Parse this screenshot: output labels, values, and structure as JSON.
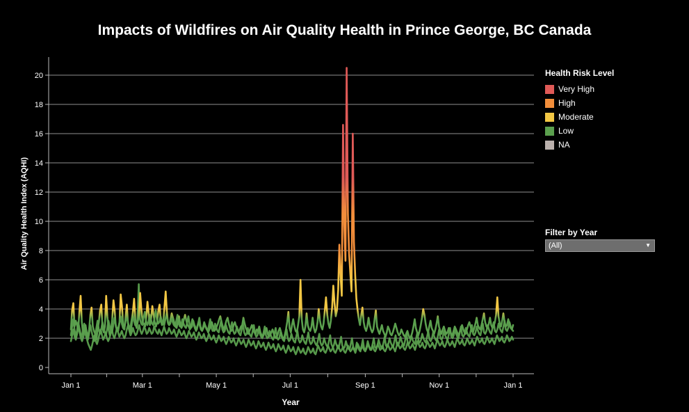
{
  "title": "Impacts of Wildfires on Air Quality Health in Prince George, BC Canada",
  "legend": {
    "title": "Health Risk Level",
    "items": [
      {
        "label": "Very High",
        "color": "#e05a57"
      },
      {
        "label": "High",
        "color": "#f28e3b"
      },
      {
        "label": "Moderate",
        "color": "#f2c744"
      },
      {
        "label": "Low",
        "color": "#5ba04e"
      },
      {
        "label": "NA",
        "color": "#bab0ac"
      }
    ]
  },
  "filter": {
    "title": "Filter by Year",
    "value": "(All)"
  },
  "chart_data": {
    "type": "line",
    "title": "Impacts of Wildfires on Air Quality Health in Prince George, BC Canada",
    "xlabel": "Year",
    "ylabel": "Air Quality Health Index (AQHI)",
    "x_tick_labels": [
      "Jan 1",
      "Mar 1",
      "May 1",
      "Jul 1",
      "Sep 1",
      "Nov 1",
      "Jan 1"
    ],
    "x_tick_days": [
      0,
      59,
      120,
      181,
      243,
      304,
      365
    ],
    "xlim_days": [
      0,
      365
    ],
    "y_ticks": [
      0,
      2,
      4,
      6,
      8,
      10,
      12,
      14,
      16,
      18,
      20
    ],
    "ylim": [
      0,
      21
    ],
    "grid": "horizontal",
    "legend_position": "right",
    "color_scale": {
      "Low": [
        0,
        3
      ],
      "Moderate": [
        4,
        6
      ],
      "High": [
        7,
        10
      ],
      "Very High": [
        11,
        21
      ]
    },
    "notable_peaks": [
      {
        "date": "Aug 8",
        "value": 8.4
      },
      {
        "date": "Aug 10",
        "value": 16.6
      },
      {
        "date": "Aug 13",
        "value": 20.5
      },
      {
        "date": "Aug 14",
        "value": 10.5
      },
      {
        "date": "Aug 18",
        "value": 16.0
      },
      {
        "date": "Jul 15",
        "value": 6.0
      },
      {
        "date": "Feb 28",
        "value": 5.7
      },
      {
        "date": "Dec 19",
        "value": 4.8
      }
    ],
    "series": [
      {
        "values": [
          2.6,
          3.9,
          4.4,
          2.8,
          3.2,
          2.9,
          2.6,
          3.8,
          4.9,
          3.1,
          2.3,
          2.5,
          2.9,
          2.4,
          2.1,
          2.6,
          3.6,
          4.1,
          2.8,
          2.5,
          2.3,
          1.9,
          2.6,
          3.1,
          3.9,
          4.3,
          2.7,
          2.4,
          2.8,
          4.9,
          3.5,
          2.6,
          2.2,
          2.5,
          3.3,
          4.6,
          3.9,
          2.8,
          2.5,
          2.7,
          3.1,
          5.0,
          4.2,
          2.9,
          2.6,
          3.4,
          4.3,
          3.0,
          2.6,
          2.4,
          2.9,
          3.8,
          4.7,
          3.3,
          2.7,
          3.1,
          3.6,
          5.1,
          4.0,
          3.1,
          3.0,
          2.8,
          3.4,
          4.5,
          3.7,
          2.9,
          3.3,
          4.2,
          3.6,
          3.1,
          2.8,
          3.1,
          3.9,
          4.3,
          3.2,
          2.9,
          3.0,
          4.1,
          5.2,
          3.8,
          3.0,
          2.9,
          3.3,
          3.7,
          3.4,
          3.1,
          2.8,
          2.7,
          3.1,
          3.5,
          2.9,
          2.7,
          2.9,
          3.3,
          3.6,
          3.2,
          2.9,
          2.8,
          2.6,
          2.9,
          3.3,
          3.0,
          2.7,
          2.5,
          2.8,
          3.1,
          2.9,
          2.6,
          2.5,
          2.7,
          3.0,
          2.8,
          2.6,
          2.4,
          2.6,
          2.9,
          3.1,
          2.8,
          2.5,
          2.6,
          2.8,
          3.0,
          3.3,
          3.5,
          3.1,
          2.8,
          2.6,
          2.9,
          3.2,
          3.4,
          3.0,
          2.7,
          2.5,
          2.6,
          2.9,
          3.1,
          2.8,
          2.6,
          2.4,
          2.6,
          2.8,
          2.9,
          3.4,
          3.0,
          2.7,
          2.5,
          2.3,
          2.5,
          2.7,
          2.9,
          2.6,
          2.4,
          2.3,
          2.6,
          2.5,
          2.8,
          2.4,
          2.2,
          2.1,
          2.3,
          2.5,
          2.7,
          2.3,
          2.1,
          2.2,
          2.4,
          2.6,
          2.3,
          2.1,
          2.0,
          2.2,
          2.5,
          2.7,
          2.4,
          2.1,
          1.9,
          2.2,
          2.6,
          3.1,
          3.8,
          2.7,
          2.4,
          2.9,
          3.3,
          2.8,
          2.5,
          2.4,
          2.9,
          3.5,
          6.0,
          3.3,
          2.6,
          2.4,
          2.8,
          3.7,
          2.9,
          2.6,
          2.5,
          2.8,
          3.4,
          2.7,
          2.4,
          2.6,
          3.1,
          4.0,
          3.2,
          2.8,
          2.6,
          3.0,
          3.9,
          4.8,
          3.6,
          3.0,
          2.7,
          3.2,
          4.1,
          5.6,
          4.4,
          3.5,
          3.9,
          5.3,
          8.4,
          6.2,
          4.9,
          16.6,
          9.8,
          7.3,
          20.5,
          10.5,
          7.8,
          6.4,
          5.2,
          16.0,
          8.6,
          6.3,
          4.7,
          3.9,
          3.3,
          2.9,
          3.6,
          4.1,
          3.1,
          2.7,
          2.5,
          2.8,
          3.4,
          2.9,
          2.6,
          2.4,
          2.6,
          3.3,
          3.9,
          2.8,
          2.5,
          2.3,
          2.6,
          2.9,
          2.5,
          2.3,
          2.1,
          2.4,
          2.8,
          2.6,
          2.3,
          2.2,
          2.4,
          2.7,
          3.0,
          2.7,
          2.4,
          2.2,
          2.3,
          2.6,
          2.4,
          2.2,
          2.1,
          2.3,
          2.5,
          2.2,
          2.0,
          2.1,
          2.4,
          2.8,
          3.3,
          2.7,
          2.4,
          2.2,
          2.5,
          2.9,
          3.4,
          4.0,
          3.6,
          3.0,
          2.6,
          2.4,
          2.8,
          3.2,
          2.7,
          2.5,
          2.3,
          2.6,
          3.0,
          3.5,
          2.8,
          2.5,
          2.3,
          2.6,
          2.8,
          2.5,
          2.3,
          2.4,
          2.7,
          2.5,
          2.3,
          2.2,
          2.5,
          2.8,
          2.6,
          2.4,
          2.2,
          2.4,
          2.7,
          2.9,
          2.6,
          2.4,
          2.3,
          2.6,
          2.9,
          3.1,
          2.8,
          2.5,
          2.4,
          2.7,
          3.0,
          3.4,
          2.9,
          2.7,
          2.6,
          2.9,
          3.3,
          3.7,
          3.1,
          2.8,
          2.7,
          3.0,
          3.4,
          2.9,
          2.7,
          2.8,
          3.1,
          3.6,
          4.8,
          3.5,
          3.0,
          2.8,
          3.2,
          3.7,
          3.1,
          2.8,
          2.9,
          3.3,
          3.0,
          2.7,
          2.6,
          2.9
        ]
      },
      {
        "values": [
          1.8,
          2.2,
          2.6,
          2.1,
          1.9,
          2.3,
          2.8,
          2.4,
          2.0,
          1.8,
          2.1,
          2.5,
          2.2,
          1.9,
          1.6,
          1.4,
          1.2,
          1.5,
          1.9,
          2.2,
          1.8,
          1.6,
          1.9,
          2.3,
          2.6,
          2.2,
          1.9,
          2.1,
          2.4,
          2.0,
          1.8,
          2.0,
          2.3,
          2.6,
          2.2,
          2.0,
          2.3,
          2.7,
          2.4,
          2.1,
          2.3,
          2.5,
          2.2,
          2.0,
          2.2,
          2.6,
          2.9,
          2.5,
          2.2,
          2.4,
          2.7,
          2.4,
          2.2,
          2.3,
          2.6,
          2.9,
          2.5,
          2.3,
          2.5,
          2.8,
          2.6,
          2.3,
          2.4,
          2.7,
          2.5,
          2.3,
          2.4,
          2.8,
          2.6,
          2.4,
          2.3,
          2.6,
          2.4,
          2.2,
          2.5,
          2.8,
          2.5,
          2.3,
          2.4,
          2.7,
          2.5,
          2.3,
          2.4,
          2.6,
          2.3,
          2.1,
          2.3,
          2.6,
          2.4,
          2.2,
          2.3,
          2.5,
          2.2,
          2.0,
          2.2,
          2.5,
          2.3,
          2.1,
          2.2,
          2.4,
          2.1,
          1.9,
          2.1,
          2.4,
          2.2,
          2.0,
          2.1,
          2.3,
          2.0,
          1.8,
          2.0,
          2.3,
          2.1,
          1.9,
          2.0,
          2.2,
          1.9,
          1.7,
          1.9,
          2.2,
          2.0,
          1.8,
          1.9,
          2.1,
          1.8,
          1.6,
          1.8,
          2.1,
          1.9,
          1.7,
          1.8,
          2.0,
          1.7,
          1.5,
          1.7,
          2.0,
          1.8,
          1.6,
          1.7,
          1.9,
          1.6,
          1.4,
          1.6,
          1.9,
          1.7,
          1.5,
          1.6,
          1.8,
          1.5,
          1.3,
          1.5,
          1.8,
          1.6,
          1.4,
          1.5,
          1.7,
          1.4,
          1.2,
          1.4,
          1.7,
          1.5,
          1.3,
          1.4,
          1.6,
          1.3,
          1.1,
          1.3,
          1.6,
          1.4,
          1.2,
          1.3,
          1.5,
          1.2,
          1.0,
          1.2,
          1.5,
          1.3,
          1.1,
          1.2,
          1.4,
          1.1,
          0.9,
          1.1,
          1.4,
          1.2,
          1.0,
          1.1,
          1.3,
          1.0,
          0.9,
          1.1,
          1.4,
          1.2,
          1.0,
          1.1,
          1.3,
          1.0,
          0.9,
          1.2,
          1.5,
          1.3,
          1.1,
          1.2,
          1.4,
          1.1,
          1.0,
          1.2,
          1.5,
          1.3,
          1.1,
          1.2,
          1.4,
          1.1,
          1.0,
          1.2,
          1.5,
          1.3,
          1.1,
          1.2,
          1.4,
          1.1,
          1.0,
          1.2,
          1.5,
          1.3,
          1.1,
          1.2,
          1.4,
          1.2,
          1.0,
          1.3,
          1.6,
          1.4,
          1.2,
          1.3,
          1.5,
          1.2,
          1.1,
          1.3,
          1.6,
          1.4,
          1.2,
          1.3,
          1.5,
          1.2,
          1.1,
          1.3,
          1.6,
          1.4,
          1.2,
          1.3,
          1.5,
          1.2,
          1.1,
          1.3,
          1.6,
          1.4,
          1.2,
          1.3,
          1.5,
          1.3,
          1.1,
          1.4,
          1.7,
          1.5,
          1.3,
          1.4,
          1.6,
          1.3,
          1.2,
          1.4,
          1.7,
          1.5,
          1.3,
          1.4,
          1.6,
          1.4,
          1.2,
          1.5,
          1.8,
          1.6,
          1.4,
          1.5,
          1.7,
          1.4,
          1.3,
          1.5,
          1.8,
          1.6,
          1.4,
          1.5,
          1.7,
          1.5,
          1.3,
          1.6,
          1.9,
          1.7,
          1.5,
          1.6,
          1.8,
          1.5,
          1.4,
          1.6,
          1.9,
          1.7,
          1.5,
          1.6,
          1.8,
          1.6,
          1.4,
          1.7,
          2.0,
          1.8,
          1.6,
          1.7,
          1.9,
          1.6,
          1.5,
          1.7,
          2.0,
          1.8,
          1.6,
          1.7,
          1.9,
          1.7,
          1.5,
          1.8,
          2.1,
          1.9,
          1.7,
          1.8,
          2.0,
          1.7,
          1.6,
          1.8,
          2.1,
          1.9,
          1.7,
          1.8,
          2.0,
          1.8,
          1.6,
          1.9,
          2.2,
          2.0,
          1.8,
          1.9,
          2.1,
          1.8,
          1.7,
          1.9,
          2.2,
          2.0,
          1.8,
          1.9,
          2.1,
          1.9
        ]
      },
      {
        "values": [
          2.2,
          2.8,
          3.3,
          2.6,
          2.1,
          2.5,
          3.1,
          2.7,
          2.3,
          2.1,
          2.6,
          3.0,
          2.5,
          2.2,
          1.9,
          2.3,
          2.9,
          2.5,
          2.1,
          1.8,
          2.2,
          2.7,
          3.2,
          2.6,
          2.3,
          2.6,
          3.1,
          2.7,
          2.4,
          2.2,
          2.7,
          3.2,
          2.8,
          2.5,
          2.4,
          2.9,
          3.4,
          2.9,
          2.6,
          2.5,
          3.0,
          3.5,
          3.0,
          2.7,
          2.6,
          3.1,
          3.6,
          3.1,
          2.8,
          2.7,
          3.2,
          3.7,
          3.2,
          2.9,
          2.8,
          3.3,
          5.7,
          3.3,
          3.0,
          2.9,
          3.4,
          3.8,
          3.2,
          2.9,
          3.1,
          3.6,
          3.3,
          3.0,
          2.9,
          3.4,
          3.9,
          3.3,
          3.0,
          3.1,
          3.5,
          3.2,
          3.0,
          2.9,
          3.3,
          3.7,
          3.1,
          2.9,
          3.0,
          3.4,
          3.1,
          2.9,
          2.8,
          3.2,
          3.6,
          3.0,
          2.8,
          2.9,
          3.3,
          3.0,
          2.8,
          2.7,
          3.1,
          3.5,
          2.9,
          2.7,
          2.8,
          3.2,
          2.9,
          2.7,
          2.6,
          3.0,
          3.4,
          2.8,
          2.6,
          2.7,
          3.1,
          2.8,
          2.6,
          2.5,
          2.9,
          3.3,
          2.7,
          2.5,
          2.6,
          3.0,
          2.7,
          2.5,
          2.4,
          2.8,
          3.2,
          2.6,
          2.4,
          2.5,
          2.9,
          2.6,
          2.4,
          2.3,
          2.7,
          3.1,
          2.5,
          2.3,
          2.4,
          2.8,
          2.5,
          2.3,
          2.2,
          2.6,
          3.0,
          2.4,
          2.2,
          2.3,
          2.7,
          2.4,
          2.2,
          2.1,
          2.5,
          2.9,
          2.3,
          2.1,
          2.2,
          2.6,
          2.3,
          2.1,
          2.0,
          2.4,
          2.8,
          2.2,
          2.0,
          2.1,
          2.5,
          2.2,
          2.0,
          1.9,
          2.3,
          2.7,
          2.1,
          1.9,
          2.0,
          2.4,
          2.1,
          1.9,
          1.8,
          2.2,
          2.6,
          2.0,
          1.8,
          1.9,
          2.3,
          2.0,
          1.8,
          1.7,
          2.1,
          2.5,
          1.9,
          1.7,
          1.8,
          2.2,
          1.9,
          1.7,
          1.6,
          2.0,
          2.4,
          1.8,
          1.6,
          1.7,
          2.1,
          1.8,
          1.6,
          1.5,
          1.9,
          2.3,
          1.7,
          1.5,
          1.6,
          2.0,
          1.7,
          1.5,
          1.4,
          1.8,
          2.2,
          1.6,
          1.4,
          1.5,
          1.9,
          1.6,
          1.4,
          1.3,
          1.7,
          2.1,
          1.5,
          1.3,
          1.4,
          1.8,
          1.5,
          1.3,
          1.2,
          1.6,
          2.0,
          1.4,
          1.2,
          1.3,
          1.7,
          1.4,
          1.2,
          1.1,
          1.5,
          1.9,
          1.3,
          1.2,
          1.4,
          1.8,
          1.5,
          1.3,
          1.2,
          1.6,
          2.0,
          1.4,
          1.3,
          1.5,
          1.9,
          1.6,
          1.4,
          1.3,
          1.7,
          2.1,
          1.5,
          1.4,
          1.6,
          2.0,
          1.7,
          1.5,
          1.4,
          1.8,
          2.2,
          1.6,
          1.5,
          1.7,
          2.1,
          1.8,
          1.6,
          1.5,
          1.9,
          2.3,
          1.7,
          1.6,
          1.8,
          2.2,
          1.9,
          1.7,
          1.6,
          2.0,
          2.4,
          1.8,
          1.7,
          1.9,
          2.3,
          2.0,
          1.8,
          1.7,
          2.1,
          2.5,
          1.9,
          1.8,
          2.0,
          2.4,
          2.1,
          1.9,
          1.8,
          2.2,
          2.6,
          2.0,
          1.9,
          2.1,
          2.5,
          2.2,
          2.0,
          1.9,
          2.3,
          2.7,
          2.1,
          2.0,
          2.2,
          2.6,
          2.3,
          2.1,
          2.0,
          2.4,
          2.8,
          2.2,
          2.1,
          2.3,
          2.7,
          2.4,
          2.2,
          2.1,
          2.5,
          2.9,
          2.3,
          2.2,
          2.4,
          2.8,
          2.5,
          2.3,
          2.2,
          2.6,
          3.0,
          2.4,
          2.3,
          2.5,
          2.9,
          2.6,
          2.4,
          2.3,
          2.7,
          3.1,
          2.5,
          2.4,
          2.6,
          3.0,
          2.7,
          2.5,
          2.4,
          2.8,
          3.2,
          2.6,
          2.5,
          2.7,
          3.1,
          2.8,
          2.6,
          2.5
        ]
      }
    ]
  }
}
